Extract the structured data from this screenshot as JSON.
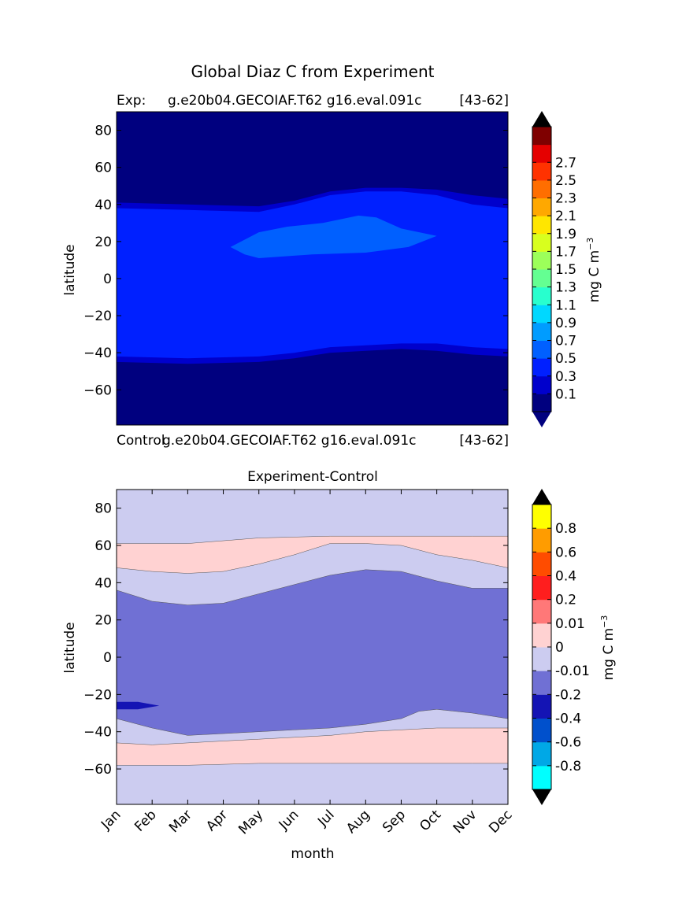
{
  "figure": {
    "title": "Global Diaz C from Experiment"
  },
  "chart_data": [
    {
      "type": "heatmap",
      "panel": "top",
      "header_left": "Exp:",
      "header_center": "g.e20b04.GECOIAF.T62 g16.eval.091c",
      "header_right": "[43-62]",
      "footer_left": "Control",
      "footer_center": "g.e20b04.GECOIAF.T62 g16.eval.091c",
      "footer_right": "[43-62]",
      "ylabel": "latitude",
      "ylim": [
        -79,
        90
      ],
      "xlim": [
        0,
        11
      ],
      "yticks": [
        80,
        60,
        40,
        20,
        0,
        -20,
        -40,
        -60
      ],
      "ytick_labels": [
        "80",
        "60",
        "40",
        "20",
        "0",
        "−20",
        "−40",
        "−60"
      ],
      "colorbar": {
        "label": "mg C m",
        "label_sup": "−3",
        "labels": [
          "0.1",
          "0.3",
          "0.5",
          "0.7",
          "0.9",
          "1.1",
          "1.3",
          "1.5",
          "1.7",
          "1.9",
          "2.1",
          "2.3",
          "2.5",
          "2.7"
        ],
        "colors": [
          "#00007f",
          "#0000cc",
          "#0020ff",
          "#0060ff",
          "#009cff",
          "#00d8ff",
          "#28ffce",
          "#64ff92",
          "#9cff5a",
          "#d8ff1e",
          "#ffe600",
          "#ffa800",
          "#ff6e00",
          "#ff3200",
          "#e50000",
          "#7f0000"
        ],
        "extend_colors": [
          "#00007f",
          "#000000"
        ]
      },
      "contours": {
        "base_color": "#00007f",
        "band_03_05_color": "#0000cc",
        "band_05_07_color": "#0020ff",
        "band_07_09_color": "#0060ff",
        "band_03_05_upper": [
          [
            0,
            41
          ],
          [
            2,
            40
          ],
          [
            4,
            39
          ],
          [
            5,
            42
          ],
          [
            6,
            47
          ],
          [
            7,
            49
          ],
          [
            8,
            49
          ],
          [
            9,
            48
          ],
          [
            10,
            45
          ],
          [
            11,
            43
          ]
        ],
        "band_05_07_upper": [
          [
            0,
            38
          ],
          [
            2,
            37
          ],
          [
            4,
            36
          ],
          [
            5,
            40
          ],
          [
            6,
            45
          ],
          [
            7,
            47
          ],
          [
            8,
            47
          ],
          [
            9,
            45
          ],
          [
            10,
            40
          ],
          [
            11,
            38
          ]
        ],
        "band_05_07_lower": [
          [
            0,
            -42
          ],
          [
            2,
            -43
          ],
          [
            4,
            -42
          ],
          [
            5,
            -40
          ],
          [
            6,
            -37
          ],
          [
            7,
            -36
          ],
          [
            8,
            -35
          ],
          [
            9,
            -35
          ],
          [
            10,
            -37
          ],
          [
            11,
            -38
          ]
        ],
        "band_03_05_lower": [
          [
            0,
            -45
          ],
          [
            2,
            -46
          ],
          [
            4,
            -45
          ],
          [
            5,
            -43
          ],
          [
            6,
            -40
          ],
          [
            7,
            -39
          ],
          [
            8,
            -38
          ],
          [
            9,
            -39
          ],
          [
            10,
            -41
          ],
          [
            11,
            -42
          ]
        ],
        "patch_07_09": [
          [
            3.2,
            17
          ],
          [
            3.6,
            21
          ],
          [
            4.0,
            25
          ],
          [
            4.8,
            28
          ],
          [
            5.8,
            30
          ],
          [
            6.8,
            34
          ],
          [
            7.3,
            33
          ],
          [
            8.0,
            27
          ],
          [
            9.0,
            23
          ],
          [
            8.2,
            17
          ],
          [
            7.0,
            14
          ],
          [
            5.5,
            13
          ],
          [
            4.0,
            11
          ],
          [
            3.6,
            13
          ]
        ]
      }
    },
    {
      "type": "heatmap",
      "panel": "bottom",
      "title": "Experiment-Control",
      "xlabel": "month",
      "ylabel": "latitude",
      "ylim": [
        -79,
        90
      ],
      "xlim": [
        0,
        11
      ],
      "categories": [
        "Jan",
        "Feb",
        "Mar",
        "Apr",
        "May",
        "Jun",
        "Jul",
        "Aug",
        "Sep",
        "Oct",
        "Nov",
        "Dec"
      ],
      "yticks": [
        80,
        60,
        40,
        20,
        0,
        -20,
        -40,
        -60
      ],
      "ytick_labels": [
        "80",
        "60",
        "40",
        "20",
        "0",
        "−20",
        "−40",
        "−60"
      ],
      "colorbar": {
        "label": "mg C m",
        "label_sup": "−3",
        "labels": [
          "-0.8",
          "-0.6",
          "-0.4",
          "-0.2",
          "-0.01",
          "0",
          "0.01",
          "0.2",
          "0.4",
          "0.6",
          "0.8"
        ],
        "colors": [
          "#00ffff",
          "#00a8e6",
          "#0050cc",
          "#1414b4",
          "#7070d4",
          "#ccccf0",
          "#ffd2d2",
          "#ff7878",
          "#ff1e1e",
          "#ff4c00",
          "#ff9c00",
          "#ffff00"
        ],
        "extend_colors": [
          "#000000",
          "#000000"
        ]
      },
      "contours": {
        "base_color": "#ccccf0",
        "pink_color": "#ffd2d2",
        "purple_color": "#7070d4",
        "dark_color": "#1414b4",
        "pink_north_top": [
          [
            0,
            61
          ],
          [
            2,
            61
          ],
          [
            4,
            64
          ],
          [
            6,
            65
          ],
          [
            8,
            65
          ],
          [
            10,
            65
          ],
          [
            11,
            65
          ]
        ],
        "pink_north_bottom": [
          [
            0,
            48
          ],
          [
            1,
            46
          ],
          [
            2,
            45
          ],
          [
            3,
            46
          ],
          [
            4,
            50
          ],
          [
            5,
            55
          ],
          [
            6,
            61
          ],
          [
            7,
            61
          ],
          [
            8,
            60
          ],
          [
            9,
            55
          ],
          [
            10,
            52
          ],
          [
            11,
            48
          ]
        ],
        "purple_top": [
          [
            0,
            36
          ],
          [
            1,
            30
          ],
          [
            2,
            28
          ],
          [
            3,
            29
          ],
          [
            4,
            34
          ],
          [
            5,
            39
          ],
          [
            6,
            44
          ],
          [
            7,
            47
          ],
          [
            8,
            46
          ],
          [
            9,
            41
          ],
          [
            10,
            37
          ],
          [
            11,
            37
          ]
        ],
        "purple_bottom": [
          [
            0,
            -33
          ],
          [
            1,
            -38
          ],
          [
            2,
            -42
          ],
          [
            3,
            -41
          ],
          [
            4,
            -40
          ],
          [
            5,
            -39
          ],
          [
            6,
            -38
          ],
          [
            7,
            -36
          ],
          [
            8,
            -33
          ],
          [
            8.5,
            -29
          ],
          [
            9,
            -28
          ],
          [
            10,
            -30
          ],
          [
            11,
            -33
          ]
        ],
        "dark_patch": [
          [
            0,
            -24
          ],
          [
            0.6,
            -24
          ],
          [
            1.2,
            -26
          ],
          [
            0.6,
            -28
          ],
          [
            0,
            -28
          ]
        ],
        "pink_south_top": [
          [
            0,
            -46
          ],
          [
            1,
            -47
          ],
          [
            2,
            -46
          ],
          [
            3,
            -45
          ],
          [
            4,
            -44
          ],
          [
            5,
            -43
          ],
          [
            6,
            -42
          ],
          [
            7,
            -40
          ],
          [
            8,
            -39
          ],
          [
            9,
            -38
          ],
          [
            10,
            -38
          ],
          [
            11,
            -38
          ]
        ],
        "pink_south_bottom": [
          [
            0,
            -58
          ],
          [
            2,
            -58
          ],
          [
            4,
            -57
          ],
          [
            6,
            -57
          ],
          [
            8,
            -57
          ],
          [
            10,
            -57
          ],
          [
            11,
            -57
          ]
        ]
      }
    }
  ]
}
